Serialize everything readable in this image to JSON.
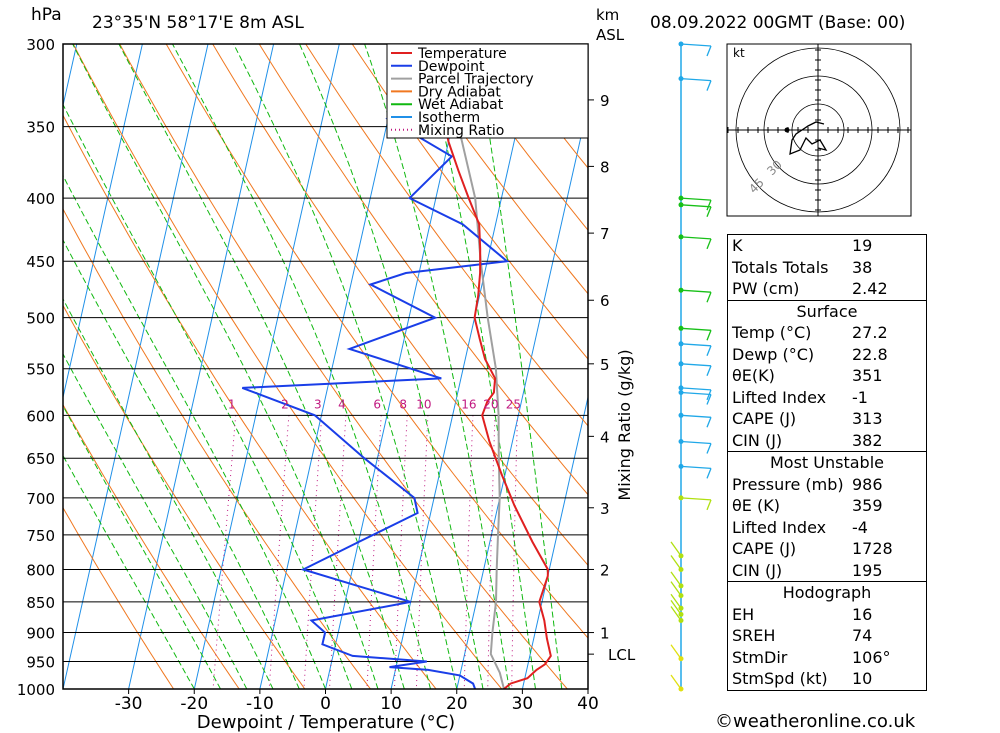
{
  "header": {
    "pressure_unit": "hPa",
    "location": "23°35'N  58°17'E  8m  ASL",
    "km_label": "km",
    "asl_label": "ASL",
    "datetime": "08.09.2022  00GMT  (Base: 00)"
  },
  "footer": {
    "copyright": "©weatheronline.co.uk"
  },
  "indices": {
    "k_label": "K",
    "k": "19",
    "tt_label": "Totals Totals",
    "tt": "38",
    "pw_label": "PW (cm)",
    "pw": "2.42",
    "surface_title": "Surface",
    "temp_label": "Temp (°C)",
    "temp": "27.2",
    "dewp_label": "Dewp (°C)",
    "dewp": "22.8",
    "thetae_label": "θE(K)",
    "thetae": "351",
    "li_label": "Lifted Index",
    "li": "-1",
    "cape_label": "CAPE (J)",
    "cape": "313",
    "cin_label": "CIN (J)",
    "cin": "382",
    "mu_title": "Most Unstable",
    "mu_pressure_label": "Pressure (mb)",
    "mu_pressure": "986",
    "mu_thetae_label": "θE (K)",
    "mu_thetae": "359",
    "mu_li_label": "Lifted Index",
    "mu_li": "-4",
    "mu_cape_label": "CAPE (J)",
    "mu_cape": "1728",
    "mu_cin_label": "CIN (J)",
    "mu_cin": "195",
    "hodo_title": "Hodograph",
    "eh_label": "EH",
    "eh": "16",
    "sreh_label": "SREH",
    "sreh": "74",
    "stmdir_label": "StmDir",
    "stmdir": "106°",
    "stmspd_label": "StmSpd (kt)",
    "stmspd": "10"
  },
  "chart_data": {
    "type": "line",
    "title": "",
    "xlabel": "Dewpoint / Temperature (°C)",
    "ylabel": "hPa",
    "right_label": "Mixing Ratio (g/kg)",
    "xlim": [
      -40,
      40
    ],
    "ylim": [
      1000,
      300
    ],
    "x_ticks": [
      -30,
      -20,
      -10,
      0,
      10,
      20,
      30,
      40
    ],
    "pressure_levels": [
      300,
      350,
      400,
      450,
      500,
      550,
      600,
      650,
      700,
      750,
      800,
      850,
      900,
      950,
      1000
    ],
    "height_km_ticks": [
      {
        "km": "9",
        "p": 333
      },
      {
        "km": "8",
        "p": 377
      },
      {
        "km": "7",
        "p": 427
      },
      {
        "km": "6",
        "p": 484
      },
      {
        "km": "5",
        "p": 545
      },
      {
        "km": "4",
        "p": 624
      },
      {
        "km": "3",
        "p": 713
      },
      {
        "km": "2",
        "p": 800
      },
      {
        "km": "1",
        "p": 900
      }
    ],
    "lcl": {
      "label": "LCL",
      "p": 937
    },
    "mixing_ratio_labels": [
      "1",
      "2",
      "3",
      "4",
      "6",
      "8",
      "10",
      "16",
      "20",
      "25"
    ],
    "mixing_ratio_label_p": 587,
    "legend": [
      "Temperature",
      "Dewpoint",
      "Parcel Trajectory",
      "Dry Adiabat",
      "Wet Adiabat",
      "Isotherm",
      "Mixing Ratio"
    ],
    "legend_position": "top-center",
    "colors": {
      "temperature": "#e02020",
      "dewpoint": "#1a3ee8",
      "parcel": "#a0a0a0",
      "dry_adiabat": "#f07820",
      "wet_adiabat": "#10b810",
      "isotherm": "#2090e8",
      "mixing_ratio": "#c01880"
    },
    "series": [
      {
        "name": "Temperature",
        "points": [
          [
            1000,
            27.2
          ],
          [
            990,
            28
          ],
          [
            980,
            30.4
          ],
          [
            965,
            31.5
          ],
          [
            955,
            32.6
          ],
          [
            940,
            33.2
          ],
          [
            910,
            32
          ],
          [
            880,
            31
          ],
          [
            850,
            29.6
          ],
          [
            830,
            29.8
          ],
          [
            810,
            30
          ],
          [
            800,
            29.8
          ],
          [
            760,
            26.5
          ],
          [
            710,
            22.5
          ],
          [
            670,
            19.5
          ],
          [
            630,
            16.5
          ],
          [
            600,
            14.5
          ],
          [
            585,
            14.8
          ],
          [
            575,
            15.5
          ],
          [
            560,
            15.2
          ],
          [
            540,
            13
          ],
          [
            520,
            11.5
          ],
          [
            500,
            10
          ],
          [
            480,
            9.8
          ],
          [
            460,
            9.3
          ],
          [
            440,
            8.5
          ],
          [
            420,
            7.5
          ],
          [
            400,
            5
          ],
          [
            380,
            2.5
          ],
          [
            360,
            0
          ],
          [
            350,
            -1
          ]
        ]
      },
      {
        "name": "Dewpoint",
        "points": [
          [
            1000,
            22.8
          ],
          [
            990,
            22.3
          ],
          [
            975,
            20
          ],
          [
            965,
            15
          ],
          [
            960,
            9
          ],
          [
            950,
            14.5
          ],
          [
            940,
            3
          ],
          [
            920,
            -2
          ],
          [
            900,
            -2
          ],
          [
            880,
            -4.5
          ],
          [
            850,
            10
          ],
          [
            800,
            -7.5
          ],
          [
            760,
            0
          ],
          [
            720,
            8
          ],
          [
            700,
            7
          ],
          [
            650,
            -2
          ],
          [
            600,
            -11
          ],
          [
            570,
            -23
          ],
          [
            560,
            7
          ],
          [
            530,
            -8
          ],
          [
            500,
            4
          ],
          [
            470,
            -7
          ],
          [
            460,
            -2
          ],
          [
            450,
            13
          ],
          [
            420,
            5
          ],
          [
            400,
            -4
          ],
          [
            370,
            1
          ],
          [
            345,
            -10
          ],
          [
            335,
            1
          ],
          [
            310,
            -5
          ],
          [
            300,
            0
          ]
        ]
      },
      {
        "name": "Parcel Trajectory",
        "points": [
          [
            1000,
            27.2
          ],
          [
            970,
            26
          ],
          [
            937,
            24
          ],
          [
            900,
            23.5
          ],
          [
            850,
            23
          ],
          [
            800,
            22
          ],
          [
            750,
            21
          ],
          [
            700,
            20
          ],
          [
            650,
            18.5
          ],
          [
            600,
            17
          ],
          [
            550,
            15
          ],
          [
            500,
            12
          ],
          [
            450,
            9
          ],
          [
            400,
            6
          ],
          [
            350,
            1
          ]
        ]
      }
    ],
    "wind_barbs": {
      "colors_by_level": [
        "#20a8e8",
        "#18c018",
        "#b0e010",
        "#e0e010"
      ],
      "levels": [
        300,
        320,
        400,
        405,
        430,
        475,
        510,
        525,
        545,
        570,
        575,
        600,
        630,
        660,
        700,
        780,
        800,
        825,
        840,
        860,
        870,
        880,
        945,
        1000
      ]
    },
    "hodograph": {
      "unit": "kt",
      "rings": [
        "15",
        "30",
        "45"
      ]
    }
  }
}
